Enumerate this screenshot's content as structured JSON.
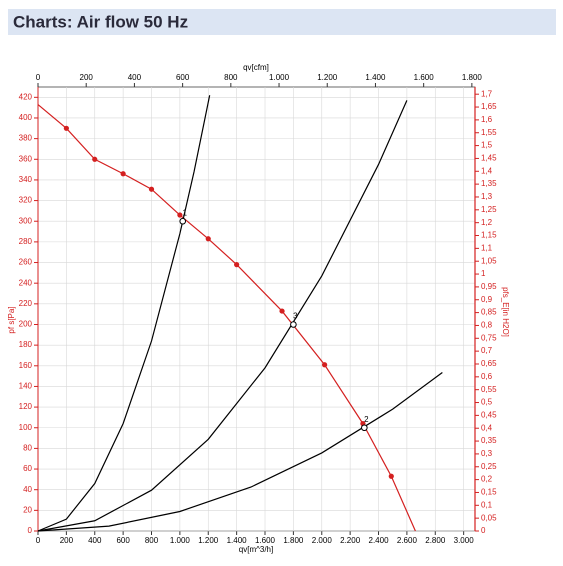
{
  "header": {
    "title": "Charts: Air flow 50 Hz"
  },
  "chart_data": {
    "type": "line",
    "xlabel": "qv[m^3/h]",
    "x2label": "qv[cfm]",
    "ylabel": "pf s[Pa]",
    "y2label": "pfs_E[in H2O]",
    "xlim": [
      0,
      3080
    ],
    "x2lim": [
      0,
      1813
    ],
    "ylim": [
      0,
      430
    ],
    "y2lim": [
      0,
      1.728
    ],
    "grid": true,
    "xticks": [
      0,
      200,
      400,
      600,
      800,
      {
        "value": 1000,
        "label": "1.000"
      },
      {
        "value": 1200,
        "label": "1.200"
      },
      {
        "value": 1400,
        "label": "1.400"
      },
      {
        "value": 1600,
        "label": "1.600"
      },
      {
        "value": 1800,
        "label": "1.800"
      },
      {
        "value": 2000,
        "label": "2.000"
      },
      {
        "value": 2200,
        "label": "2.200"
      },
      {
        "value": 2400,
        "label": "2.400"
      },
      {
        "value": 2600,
        "label": "2.600"
      },
      {
        "value": 2800,
        "label": "2.800"
      },
      {
        "value": 3000,
        "label": "3.000"
      }
    ],
    "x2ticks": [
      0,
      200,
      400,
      600,
      800,
      {
        "value": 1000,
        "label": "1.000"
      },
      {
        "value": 1200,
        "label": "1.200"
      },
      {
        "value": 1400,
        "label": "1.400"
      },
      {
        "value": 1600,
        "label": "1.600"
      },
      {
        "value": 1800,
        "label": "1.800"
      }
    ],
    "yticks": [
      0,
      20,
      40,
      60,
      80,
      100,
      120,
      140,
      160,
      180,
      200,
      220,
      240,
      260,
      280,
      300,
      320,
      340,
      360,
      380,
      400,
      420
    ],
    "y2ticks": [
      0,
      {
        "value": 0.05,
        "label": "0,05"
      },
      {
        "value": 0.1,
        "label": "0,1"
      },
      {
        "value": 0.15,
        "label": "0,15"
      },
      {
        "value": 0.2,
        "label": "0,2"
      },
      {
        "value": 0.25,
        "label": "0,25"
      },
      {
        "value": 0.3,
        "label": "0,3"
      },
      {
        "value": 0.35,
        "label": "0,35"
      },
      {
        "value": 0.4,
        "label": "0,4"
      },
      {
        "value": 0.45,
        "label": "0,45"
      },
      {
        "value": 0.5,
        "label": "0,5"
      },
      {
        "value": 0.55,
        "label": "0,55"
      },
      {
        "value": 0.6,
        "label": "0,6"
      },
      {
        "value": 0.65,
        "label": "0,65"
      },
      {
        "value": 0.7,
        "label": "0,7"
      },
      {
        "value": 0.75,
        "label": "0,75"
      },
      {
        "value": 0.8,
        "label": "0,8"
      },
      {
        "value": 0.85,
        "label": "0,85"
      },
      {
        "value": 0.9,
        "label": "0,9"
      },
      {
        "value": 0.95,
        "label": "0,95"
      },
      1,
      {
        "value": 1.05,
        "label": "1,05"
      },
      {
        "value": 1.1,
        "label": "1,1"
      },
      {
        "value": 1.15,
        "label": "1,15"
      },
      {
        "value": 1.2,
        "label": "1,2"
      },
      {
        "value": 1.25,
        "label": "1,25"
      },
      {
        "value": 1.3,
        "label": "1,3"
      },
      {
        "value": 1.35,
        "label": "1,35"
      },
      {
        "value": 1.4,
        "label": "1,4"
      },
      {
        "value": 1.45,
        "label": "1,45"
      },
      {
        "value": 1.5,
        "label": "1,5"
      },
      {
        "value": 1.55,
        "label": "1,55"
      },
      {
        "value": 1.6,
        "label": "1,6"
      },
      {
        "value": 1.65,
        "label": "1,65"
      },
      {
        "value": 1.7,
        "label": "1,7"
      }
    ],
    "series": [
      {
        "color": "#d42020",
        "markers": true,
        "x": [
          0,
          200,
          400,
          600,
          800,
          1000,
          1200,
          1400,
          1720,
          2020,
          2290,
          2490,
          2660
        ],
        "values": [
          413,
          390,
          360,
          346,
          331,
          306,
          283,
          258,
          213,
          161,
          104,
          53,
          0
        ]
      },
      {
        "color": "#000000",
        "markers": false,
        "x": [
          0,
          200,
          400,
          600,
          800,
          1000,
          1100,
          1210
        ],
        "values": [
          0,
          11.5,
          46,
          104,
          184,
          288,
          348,
          422
        ]
      },
      {
        "color": "#000000",
        "markers": false,
        "x": [
          0,
          400,
          800,
          1200,
          1600,
          2000,
          2400,
          2600
        ],
        "values": [
          0,
          9.9,
          39.5,
          88.8,
          158,
          247,
          355,
          417
        ]
      },
      {
        "color": "#000000",
        "markers": false,
        "x": [
          0,
          500,
          1000,
          1500,
          2000,
          2500,
          2850
        ],
        "values": [
          0,
          4.7,
          18.9,
          42.5,
          75.6,
          118,
          153.5
        ]
      }
    ],
    "operating_points": [
      {
        "label": "1",
        "x": 1020,
        "y": 300
      },
      {
        "label": "3",
        "x": 1800,
        "y": 200
      },
      {
        "label": "2",
        "x": 2300,
        "y": 100
      }
    ]
  }
}
